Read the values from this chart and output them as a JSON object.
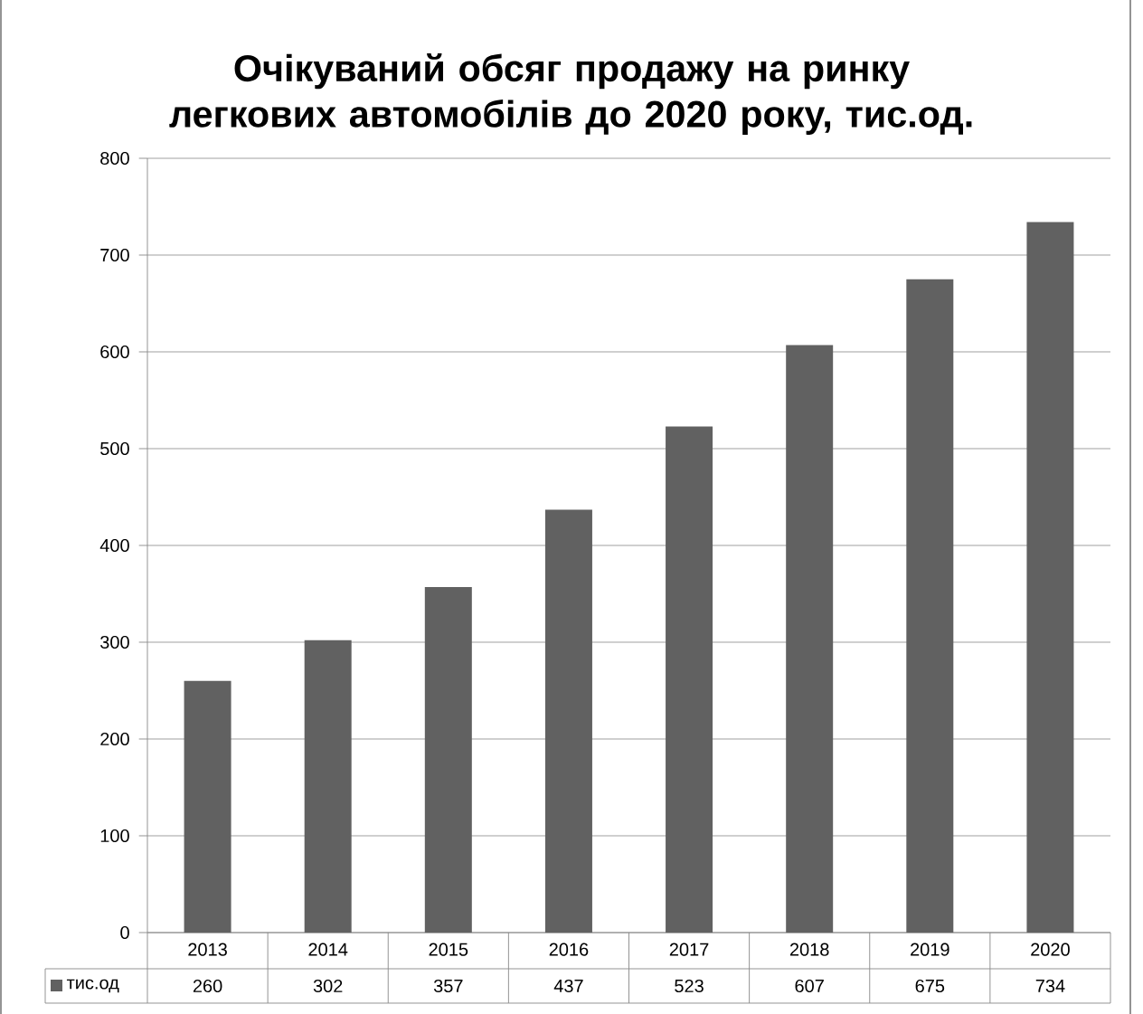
{
  "chart_data": {
    "type": "bar",
    "title": "Очікуваний обсяг продажу на ринку легкових автомобілів до 2020 року, тис.од.",
    "categories": [
      "2013",
      "2014",
      "2015",
      "2016",
      "2017",
      "2018",
      "2019",
      "2020"
    ],
    "series": [
      {
        "name": "тис.од",
        "color": "#616161",
        "values": [
          260,
          302,
          357,
          437,
          523,
          607,
          675,
          734
        ]
      }
    ],
    "ylim": [
      0,
      800
    ],
    "yticks": [
      0,
      100,
      200,
      300,
      400,
      500,
      600,
      700,
      800
    ],
    "grid": "y",
    "legend": "bottom",
    "data_labels": true
  }
}
